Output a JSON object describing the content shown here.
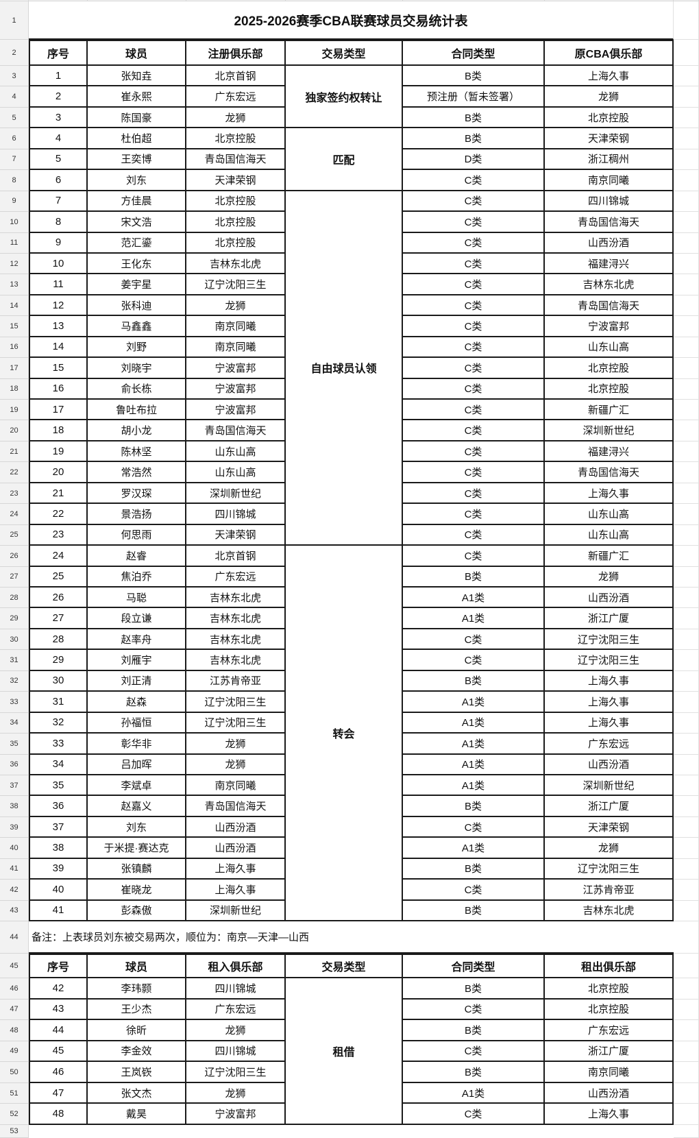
{
  "title": "2025-2026赛季CBA联赛球员交易统计表",
  "row_numbers": [
    1,
    2,
    3,
    4,
    5,
    6,
    7,
    8,
    9,
    10,
    11,
    12,
    13,
    14,
    15,
    16,
    17,
    18,
    19,
    20,
    21,
    22,
    23,
    24,
    25,
    26,
    27,
    28,
    29,
    30,
    31,
    32,
    33,
    34,
    35,
    36,
    37,
    38,
    39,
    40,
    41,
    42,
    43,
    44,
    45,
    46,
    47,
    48,
    49,
    50,
    51,
    52,
    53
  ],
  "table1": {
    "headers": [
      "序号",
      "球员",
      "注册俱乐部",
      "交易类型",
      "合同类型",
      "原CBA俱乐部"
    ],
    "groups": [
      {
        "trade_type": "独家签约权转让",
        "rows": [
          [
            "1",
            "张知垚",
            "北京首钢",
            "B类",
            "上海久事"
          ],
          [
            "2",
            "崔永熙",
            "广东宏远",
            "预注册（暂未签署）",
            "龙狮"
          ],
          [
            "3",
            "陈国豪",
            "龙狮",
            "B类",
            "北京控股"
          ]
        ]
      },
      {
        "trade_type": "匹配",
        "rows": [
          [
            "4",
            "杜伯超",
            "北京控股",
            "B类",
            "天津荣钢"
          ],
          [
            "5",
            "王奕博",
            "青岛国信海天",
            "D类",
            "浙江稠州"
          ],
          [
            "6",
            "刘东",
            "天津荣钢",
            "C类",
            "南京同曦"
          ]
        ]
      },
      {
        "trade_type": "自由球员认领",
        "rows": [
          [
            "7",
            "方佳晨",
            "北京控股",
            "C类",
            "四川锦城"
          ],
          [
            "8",
            "宋文浩",
            "北京控股",
            "C类",
            "青岛国信海天"
          ],
          [
            "9",
            "范汇鎏",
            "北京控股",
            "C类",
            "山西汾酒"
          ],
          [
            "10",
            "王化东",
            "吉林东北虎",
            "C类",
            "福建浔兴"
          ],
          [
            "11",
            "姜宇星",
            "辽宁沈阳三生",
            "C类",
            "吉林东北虎"
          ],
          [
            "12",
            "张科迪",
            "龙狮",
            "C类",
            "青岛国信海天"
          ],
          [
            "13",
            "马鑫鑫",
            "南京同曦",
            "C类",
            "宁波富邦"
          ],
          [
            "14",
            "刘野",
            "南京同曦",
            "C类",
            "山东山高"
          ],
          [
            "15",
            "刘晓宇",
            "宁波富邦",
            "C类",
            "北京控股"
          ],
          [
            "16",
            "俞长栋",
            "宁波富邦",
            "C类",
            "北京控股"
          ],
          [
            "17",
            "鲁吐布拉",
            "宁波富邦",
            "C类",
            "新疆广汇"
          ],
          [
            "18",
            "胡小龙",
            "青岛国信海天",
            "C类",
            "深圳新世纪"
          ],
          [
            "19",
            "陈林坚",
            "山东山高",
            "C类",
            "福建浔兴"
          ],
          [
            "20",
            "常浩然",
            "山东山高",
            "C类",
            "青岛国信海天"
          ],
          [
            "21",
            "罗汉琛",
            "深圳新世纪",
            "C类",
            "上海久事"
          ],
          [
            "22",
            "景浩扬",
            "四川锦城",
            "C类",
            "山东山高"
          ],
          [
            "23",
            "何思雨",
            "天津荣钢",
            "C类",
            "山东山高"
          ]
        ]
      },
      {
        "trade_type": "转会",
        "rows": [
          [
            "24",
            "赵睿",
            "北京首钢",
            "C类",
            "新疆广汇"
          ],
          [
            "25",
            "焦泊乔",
            "广东宏远",
            "B类",
            "龙狮"
          ],
          [
            "26",
            "马聪",
            "吉林东北虎",
            "A1类",
            "山西汾酒"
          ],
          [
            "27",
            "段立谦",
            "吉林东北虎",
            "A1类",
            "浙江广厦"
          ],
          [
            "28",
            "赵率舟",
            "吉林东北虎",
            "C类",
            "辽宁沈阳三生"
          ],
          [
            "29",
            "刘雁宇",
            "吉林东北虎",
            "C类",
            "辽宁沈阳三生"
          ],
          [
            "30",
            "刘正清",
            "江苏肯帝亚",
            "B类",
            "上海久事"
          ],
          [
            "31",
            "赵森",
            "辽宁沈阳三生",
            "A1类",
            "上海久事"
          ],
          [
            "32",
            "孙福恒",
            "辽宁沈阳三生",
            "A1类",
            "上海久事"
          ],
          [
            "33",
            "彰华非",
            "龙狮",
            "A1类",
            "广东宏远"
          ],
          [
            "34",
            "吕加晖",
            "龙狮",
            "A1类",
            "山西汾酒"
          ],
          [
            "35",
            "李斌卓",
            "南京同曦",
            "A1类",
            "深圳新世纪"
          ],
          [
            "36",
            "赵嘉义",
            "青岛国信海天",
            "B类",
            "浙江广厦"
          ],
          [
            "37",
            "刘东",
            "山西汾酒",
            "C类",
            "天津荣钢"
          ],
          [
            "38",
            "于米提·赛达克",
            "山西汾酒",
            "A1类",
            "龙狮"
          ],
          [
            "39",
            "张镇麟",
            "上海久事",
            "B类",
            "辽宁沈阳三生"
          ],
          [
            "40",
            "崔晓龙",
            "上海久事",
            "C类",
            "江苏肯帝亚"
          ],
          [
            "41",
            "彭森傲",
            "深圳新世纪",
            "B类",
            "吉林东北虎"
          ]
        ]
      }
    ]
  },
  "note": "备注：上表球员刘东被交易两次，顺位为：南京—天津—山西",
  "table2": {
    "headers": [
      "序号",
      "球员",
      "租入俱乐部",
      "交易类型",
      "合同类型",
      "租出俱乐部"
    ],
    "groups": [
      {
        "trade_type": "租借",
        "rows": [
          [
            "42",
            "李玮颢",
            "四川锦城",
            "B类",
            "北京控股"
          ],
          [
            "43",
            "王少杰",
            "广东宏远",
            "C类",
            "北京控股"
          ],
          [
            "44",
            "徐昕",
            "龙狮",
            "B类",
            "广东宏远"
          ],
          [
            "45",
            "李金效",
            "四川锦城",
            "C类",
            "浙江广厦"
          ],
          [
            "46",
            "王岚嵚",
            "辽宁沈阳三生",
            "B类",
            "南京同曦"
          ],
          [
            "47",
            "张文杰",
            "龙狮",
            "A1类",
            "山西汾酒"
          ],
          [
            "48",
            "戴昊",
            "宁波富邦",
            "C类",
            "上海久事"
          ]
        ]
      }
    ]
  }
}
